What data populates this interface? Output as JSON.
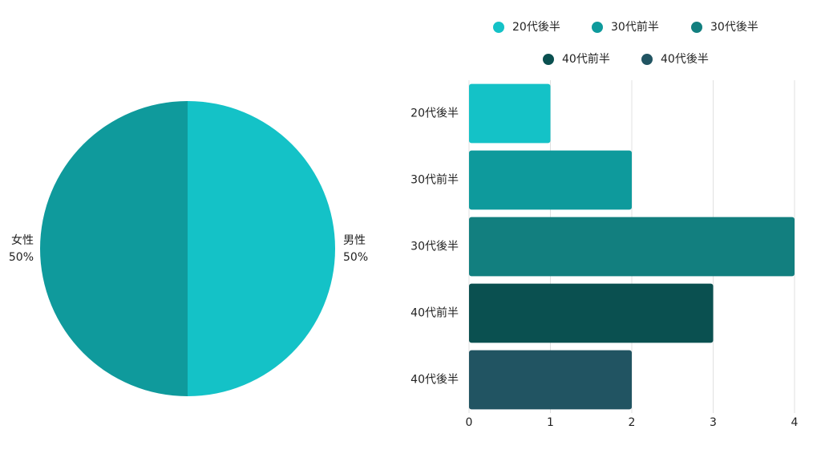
{
  "chart_data": [
    {
      "type": "pie",
      "categories": [
        "男性",
        "女性"
      ],
      "values": [
        50,
        50
      ],
      "value_labels": [
        "50%",
        "50%"
      ],
      "colors": [
        "#14c2c7",
        "#0f9a9c"
      ]
    },
    {
      "type": "hbar",
      "categories": [
        "20代後半",
        "30代前半",
        "30代後半",
        "40代前半",
        "40代後半"
      ],
      "values": [
        1,
        2,
        4,
        3,
        2
      ],
      "colors": [
        "#14c2c7",
        "#0e9a9c",
        "#127f7f",
        "#0a5050",
        "#215462"
      ],
      "xlim": [
        0,
        4
      ],
      "xticks": [
        0,
        1,
        2,
        3,
        4
      ],
      "grid": true,
      "legend": "top"
    }
  ]
}
